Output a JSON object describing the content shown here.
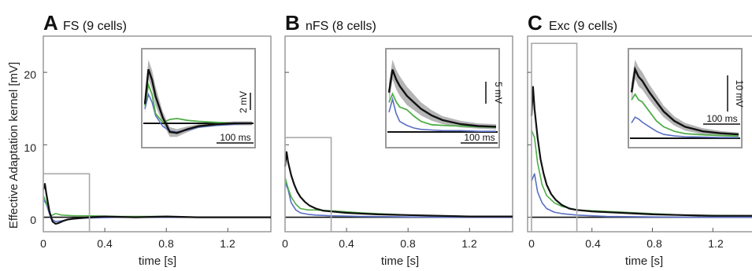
{
  "figure": {
    "ylabel": "Effective Adaptation kernel [mV]",
    "xlabel": "time [s]",
    "colors": {
      "mean": "#111111",
      "band": "#b5b5b5",
      "green": "#4fae47",
      "blue": "#5a6fc4",
      "frame": "#8a8a8a",
      "inset_frame": "#9a9a9a",
      "zoom_box": "#a9a9a9"
    }
  },
  "chart_data": [
    {
      "type": "line",
      "panel": "A",
      "title": "FS (9 cells)",
      "xlabel": "time [s]",
      "ylabel": "Effective Adaptation kernel [mV]",
      "xlim": [
        0,
        1.48
      ],
      "ylim": [
        -2,
        25
      ],
      "xticks": [
        0,
        0.4,
        0.8,
        1.2
      ],
      "xtick_labels": [
        "0",
        "0.4",
        "0.8",
        "1.2"
      ],
      "yticks": [
        0,
        10,
        20
      ],
      "ytick_labels": [
        "0",
        "10",
        "20"
      ],
      "series": [
        {
          "role": "mean",
          "x": [
            0,
            0.01,
            0.02,
            0.04,
            0.06,
            0.08,
            0.1,
            0.13,
            0.16,
            0.2,
            0.3,
            0.4,
            0.6,
            0.8,
            1.0,
            1.2,
            1.48
          ],
          "y": [
            3.8,
            4.6,
            3.2,
            0.8,
            -0.6,
            -0.9,
            -0.8,
            -0.5,
            -0.3,
            -0.2,
            0.0,
            0.1,
            0.0,
            0.1,
            0.0,
            0.0,
            0.0
          ]
        },
        {
          "role": "green",
          "x": [
            0,
            0.02,
            0.05,
            0.08,
            0.12,
            0.2,
            0.3,
            0.5,
            0.8,
            1.0,
            1.48
          ],
          "y": [
            3.0,
            2.0,
            0.2,
            0.5,
            0.3,
            0.2,
            0.2,
            0.1,
            0.1,
            0.0,
            0.0
          ]
        },
        {
          "role": "blue",
          "x": [
            0,
            0.02,
            0.05,
            0.08,
            0.12,
            0.2,
            0.3,
            0.5,
            1.0,
            1.48
          ],
          "y": [
            2.5,
            1.8,
            -0.2,
            -0.6,
            -0.5,
            -0.2,
            -0.1,
            0.0,
            0.0,
            0.0
          ]
        }
      ],
      "zoom_box": {
        "x": [
          0,
          0.3
        ],
        "y": [
          -2,
          6
        ]
      },
      "inset": {
        "scalebars": [
          {
            "label": "2 mV",
            "orientation": "vertical"
          },
          {
            "label": "100 ms",
            "orientation": "horizontal"
          }
        ],
        "time_window_s": [
          0,
          0.3
        ],
        "x": [
          0,
          0.01,
          0.02,
          0.03,
          0.05,
          0.07,
          0.09,
          0.12,
          0.15,
          0.2,
          0.25,
          0.3
        ],
        "mean": [
          2.0,
          5.6,
          4.5,
          2.8,
          0.6,
          -0.9,
          -1.0,
          -0.6,
          -0.3,
          -0.1,
          0.0,
          0.0
        ],
        "green": [
          1.8,
          4.0,
          3.0,
          1.0,
          0.1,
          0.4,
          0.5,
          0.3,
          0.2,
          0.1,
          0.0,
          0.0
        ],
        "blue": [
          1.5,
          3.0,
          2.2,
          0.8,
          -0.3,
          -0.8,
          -0.9,
          -0.7,
          -0.4,
          -0.2,
          -0.1,
          0.0
        ],
        "band": [
          1.0,
          1.0,
          1.0,
          1.0,
          0.6,
          0.5,
          0.4,
          0.3,
          0.2,
          0.2,
          0.2,
          0.2
        ]
      }
    },
    {
      "type": "line",
      "panel": "B",
      "title": "nFS (8 cells)",
      "xlabel": "time [s]",
      "ylabel": "",
      "xlim": [
        0,
        1.48
      ],
      "ylim": [
        -2,
        25
      ],
      "xticks": [
        0,
        0.4,
        0.8,
        1.2
      ],
      "xtick_labels": [
        "0",
        "0.4",
        "0.8",
        "1.2"
      ],
      "series": [
        {
          "role": "mean",
          "x": [
            0,
            0.01,
            0.02,
            0.04,
            0.06,
            0.08,
            0.1,
            0.13,
            0.16,
            0.2,
            0.25,
            0.3,
            0.4,
            0.6,
            0.8,
            1.0,
            1.2,
            1.48
          ],
          "y": [
            7.0,
            9.0,
            7.6,
            5.8,
            4.5,
            3.5,
            2.8,
            2.1,
            1.6,
            1.2,
            0.9,
            0.8,
            0.6,
            0.4,
            0.3,
            0.2,
            0.1,
            0.1
          ]
        },
        {
          "role": "green",
          "x": [
            0,
            0.02,
            0.04,
            0.07,
            0.1,
            0.15,
            0.2,
            0.3,
            0.5,
            0.8,
            1.2,
            1.48
          ],
          "y": [
            5.5,
            4.0,
            2.8,
            1.8,
            1.2,
            1.0,
            1.0,
            0.9,
            0.6,
            0.3,
            0.1,
            0.1
          ]
        },
        {
          "role": "blue",
          "x": [
            0,
            0.02,
            0.04,
            0.07,
            0.1,
            0.15,
            0.2,
            0.3,
            0.5,
            1.0,
            1.48
          ],
          "y": [
            4.8,
            3.8,
            2.0,
            1.0,
            0.6,
            0.4,
            0.3,
            0.2,
            0.1,
            0.0,
            0.0
          ]
        }
      ],
      "zoom_box": {
        "x": [
          0,
          0.3
        ],
        "y": [
          -2,
          11
        ]
      },
      "inset": {
        "scalebars": [
          {
            "label": "5 mV",
            "orientation": "vertical"
          },
          {
            "label": "100 ms",
            "orientation": "horizontal"
          }
        ],
        "time_window_s": [
          0,
          0.3
        ],
        "x": [
          0,
          0.01,
          0.02,
          0.03,
          0.05,
          0.07,
          0.09,
          0.12,
          0.15,
          0.2,
          0.25,
          0.3
        ],
        "mean": [
          6.0,
          9.5,
          8.0,
          7.0,
          5.5,
          4.5,
          3.5,
          2.5,
          1.8,
          1.2,
          0.9,
          0.8
        ],
        "green": [
          4.5,
          5.8,
          4.6,
          3.8,
          3.4,
          2.4,
          1.6,
          1.1,
          1.0,
          0.9,
          0.8,
          0.7
        ],
        "blue": [
          3.0,
          5.0,
          2.8,
          1.6,
          1.0,
          0.6,
          0.4,
          0.3,
          0.2,
          0.2,
          0.1,
          0.1
        ],
        "band": [
          1.5,
          1.5,
          1.5,
          1.5,
          1.4,
          1.2,
          1.0,
          0.8,
          0.6,
          0.5,
          0.4,
          0.4
        ]
      }
    },
    {
      "type": "line",
      "panel": "C",
      "title": "Exc (9 cells)",
      "xlabel": "time [s]",
      "ylabel": "",
      "xlim": [
        0,
        1.48
      ],
      "ylim": [
        -2,
        25
      ],
      "xticks": [
        0,
        0.4,
        0.8,
        1.2
      ],
      "xtick_labels": [
        "0",
        "0.4",
        "0.8",
        "1.2"
      ],
      "series": [
        {
          "role": "mean",
          "x": [
            0,
            0.01,
            0.02,
            0.04,
            0.06,
            0.08,
            0.1,
            0.13,
            0.16,
            0.2,
            0.25,
            0.3,
            0.4,
            0.6,
            0.8,
            1.0,
            1.2,
            1.48
          ],
          "y": [
            14.0,
            18.0,
            15.0,
            11.0,
            8.0,
            6.0,
            4.5,
            3.2,
            2.4,
            1.7,
            1.2,
            1.0,
            0.8,
            0.6,
            0.4,
            0.3,
            0.2,
            0.2
          ]
        },
        {
          "role": "green",
          "x": [
            0,
            0.02,
            0.04,
            0.07,
            0.1,
            0.15,
            0.2,
            0.3,
            0.5,
            0.8,
            1.0,
            1.48
          ],
          "y": [
            12.0,
            11.0,
            7.5,
            4.5,
            3.0,
            2.0,
            1.5,
            1.0,
            0.8,
            0.5,
            0.3,
            0.2
          ]
        },
        {
          "role": "blue",
          "x": [
            0,
            0.02,
            0.04,
            0.07,
            0.1,
            0.15,
            0.2,
            0.3,
            0.5,
            1.0,
            1.48
          ],
          "y": [
            5.0,
            6.0,
            3.5,
            2.0,
            1.2,
            0.7,
            0.5,
            0.3,
            0.1,
            0.0,
            0.0
          ]
        }
      ],
      "zoom_box": {
        "x": [
          0,
          0.3
        ],
        "y": [
          -2,
          24
        ]
      },
      "inset": {
        "scalebars": [
          {
            "label": "10 mV",
            "orientation": "vertical"
          },
          {
            "label": "100 ms",
            "orientation": "horizontal"
          }
        ],
        "time_window_s": [
          0,
          0.3
        ],
        "x": [
          0,
          0.01,
          0.02,
          0.03,
          0.05,
          0.07,
          0.09,
          0.12,
          0.15,
          0.2,
          0.25,
          0.3
        ],
        "mean": [
          12.0,
          18.0,
          16.0,
          15.0,
          12.0,
          9.5,
          7.0,
          4.5,
          3.0,
          1.8,
          1.3,
          1.0
        ],
        "green": [
          10.0,
          11.5,
          10.0,
          9.5,
          7.0,
          4.5,
          3.0,
          1.8,
          1.2,
          0.9,
          0.7,
          0.6
        ],
        "blue": [
          4.0,
          5.5,
          5.0,
          4.2,
          3.0,
          1.8,
          1.0,
          0.6,
          0.4,
          0.3,
          0.2,
          0.2
        ],
        "band": [
          2.5,
          2.5,
          2.5,
          2.3,
          2.0,
          1.8,
          1.5,
          1.2,
          1.0,
          0.8,
          0.6,
          0.5
        ]
      }
    }
  ]
}
